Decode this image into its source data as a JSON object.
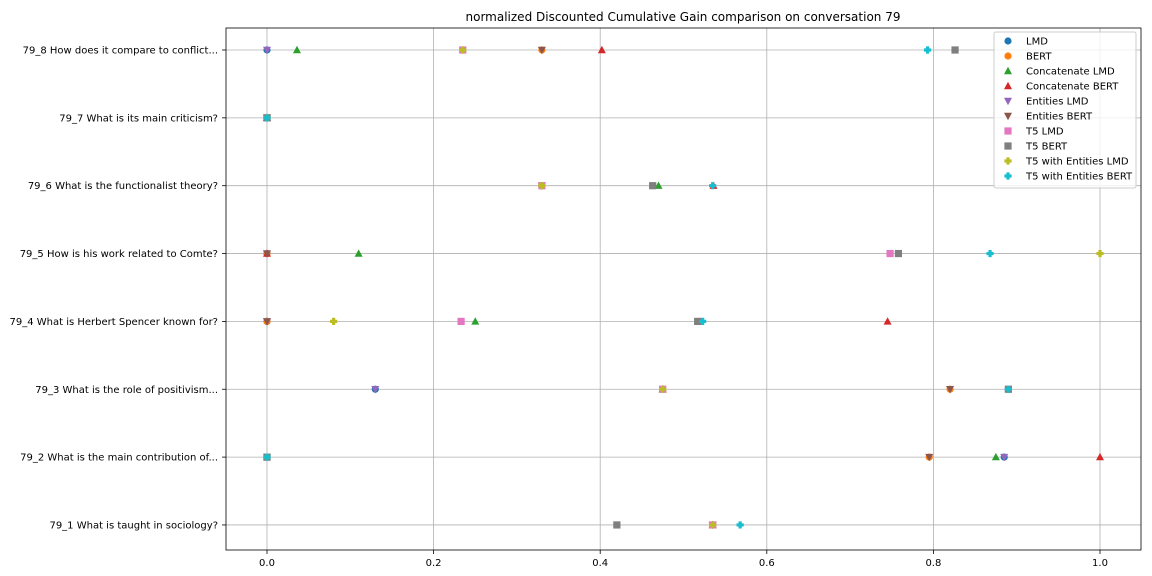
{
  "chart_data": {
    "type": "scatter",
    "title": "normalized Discounted Cumulative Gain comparison on conversation 79",
    "xlabel": "",
    "ylabel": "",
    "xlim": [
      -0.05,
      1.05
    ],
    "xticks": [
      0.0,
      0.2,
      0.4,
      0.6,
      0.8,
      1.0
    ],
    "xtick_labels": [
      "0.0",
      "0.2",
      "0.4",
      "0.6",
      "0.8",
      "1.0"
    ],
    "grid": true,
    "legend_position": "top-right",
    "categories": [
      "79_1 What is taught in sociology?",
      "79_2 What is the main contribution of...",
      "79_3 What is the role of positivism...",
      "79_4 What is Herbert Spencer known for?",
      "79_5 How is his work related to Comte?",
      "79_6 What is the functionalist theory?",
      "79_7 What is its main criticism?",
      "79_8 How does it compare to conflict..."
    ],
    "series": [
      {
        "name": "LMD",
        "marker": "circle",
        "color": "#1f77b4",
        "values": [
          0.535,
          0.885,
          0.13,
          0.0,
          0.0,
          0.33,
          0.0,
          0.0
        ]
      },
      {
        "name": "BERT",
        "marker": "circle",
        "color": "#ff7f0e",
        "values": [
          0.535,
          0.795,
          0.82,
          0.0,
          0.0,
          0.33,
          0.0,
          0.33
        ]
      },
      {
        "name": "Concatenate LMD",
        "marker": "triangle-up",
        "color": "#2ca02c",
        "values": [
          0.535,
          0.875,
          0.475,
          0.25,
          0.11,
          0.47,
          0.0,
          0.036
        ]
      },
      {
        "name": "Concatenate BERT",
        "marker": "triangle-up",
        "color": "#d62728",
        "values": [
          0.535,
          1.0,
          0.475,
          0.745,
          0.0,
          0.536,
          0.0,
          0.402
        ]
      },
      {
        "name": "Entities LMD",
        "marker": "triangle-down",
        "color": "#9467bd",
        "values": [
          0.535,
          0.885,
          0.13,
          0.0,
          0.0,
          0.33,
          0.0,
          0.0
        ]
      },
      {
        "name": "Entities BERT",
        "marker": "triangle-down",
        "color": "#8c564b",
        "values": [
          0.535,
          0.795,
          0.82,
          0.0,
          0.0,
          0.33,
          0.0,
          0.33
        ]
      },
      {
        "name": "T5 LMD",
        "marker": "square",
        "color": "#e377c2",
        "values": [
          0.535,
          0.0,
          0.475,
          0.233,
          0.748,
          0.33,
          0.0,
          0.235
        ]
      },
      {
        "name": "T5 BERT",
        "marker": "square",
        "color": "#7f7f7f",
        "values": [
          0.42,
          0.0,
          0.89,
          0.517,
          0.758,
          0.463,
          0.0,
          0.826
        ]
      },
      {
        "name": "T5 with Entities LMD",
        "marker": "plus",
        "color": "#bcbd22",
        "values": [
          0.535,
          0.0,
          0.475,
          0.08,
          1.0,
          0.33,
          0.0,
          0.235
        ]
      },
      {
        "name": "T5 with Entities BERT",
        "marker": "plus",
        "color": "#17becf",
        "values": [
          0.568,
          0.0,
          0.89,
          0.523,
          0.868,
          0.535,
          0.0,
          0.793
        ]
      }
    ]
  }
}
